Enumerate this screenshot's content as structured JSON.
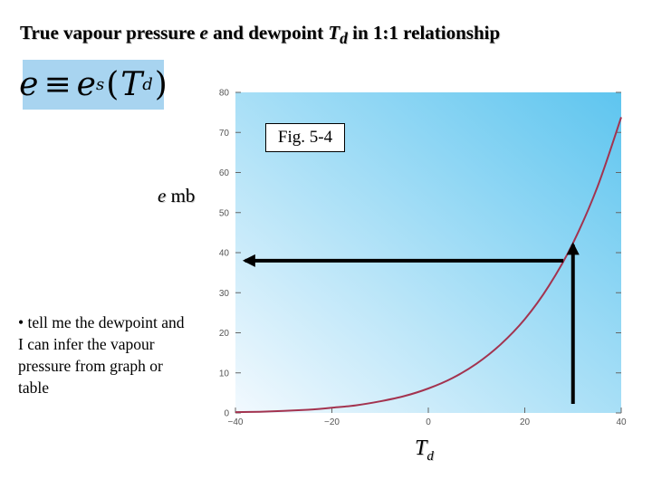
{
  "slide": {
    "title_part1": "True vapour pressure ",
    "title_e": "e",
    "title_part2": " and dewpoint ",
    "title_T": "T",
    "title_sub": "d",
    "title_part3": " in 1:1 relationship",
    "formula_lhs": "e",
    "formula_equiv": "≡",
    "formula_e": "e",
    "formula_sub_s": "s",
    "formula_open": "(",
    "formula_T": "T",
    "formula_sub_d": "d",
    "formula_close": ")",
    "ylabel_var": "e",
    "ylabel_unit": " mb",
    "bullet_text": "• tell me the dewpoint and I can infer the vapour pressure from graph or table",
    "xlabel_var": "T",
    "xlabel_sub": "d",
    "fig_label": "Fig. 5-4"
  },
  "colors": {
    "curve": "#a3334f",
    "plot_gradient_light": "#f2f9fe",
    "plot_gradient_dark": "#5ec5ef",
    "arrow": "#000000"
  },
  "chart_data": {
    "type": "line",
    "title": "",
    "xlabel": "",
    "ylabel": "",
    "xlim": [
      -40,
      40
    ],
    "ylim": [
      0,
      80
    ],
    "xticks": [
      -40,
      -20,
      0,
      20,
      40
    ],
    "yticks": [
      0,
      10,
      20,
      30,
      40,
      50,
      60,
      70,
      80
    ],
    "grid": false,
    "legend": "none",
    "series": [
      {
        "x": [
          -40,
          -35,
          -30,
          -25,
          -20,
          -15,
          -10,
          -5,
          0,
          5,
          10,
          15,
          20,
          25,
          30,
          35,
          40
        ],
        "y": [
          0.2,
          0.3,
          0.5,
          0.8,
          1.3,
          1.9,
          2.9,
          4.2,
          6.1,
          8.7,
          12.3,
          17.1,
          23.4,
          31.7,
          42.4,
          56.2,
          73.8
        ]
      }
    ],
    "annotations": {
      "vertical_arrow": {
        "x": 30,
        "y_from": 0,
        "y_to": 42
      },
      "horizontal_arrow": {
        "y": 38,
        "x_from": 28,
        "x_to": -38
      }
    }
  }
}
